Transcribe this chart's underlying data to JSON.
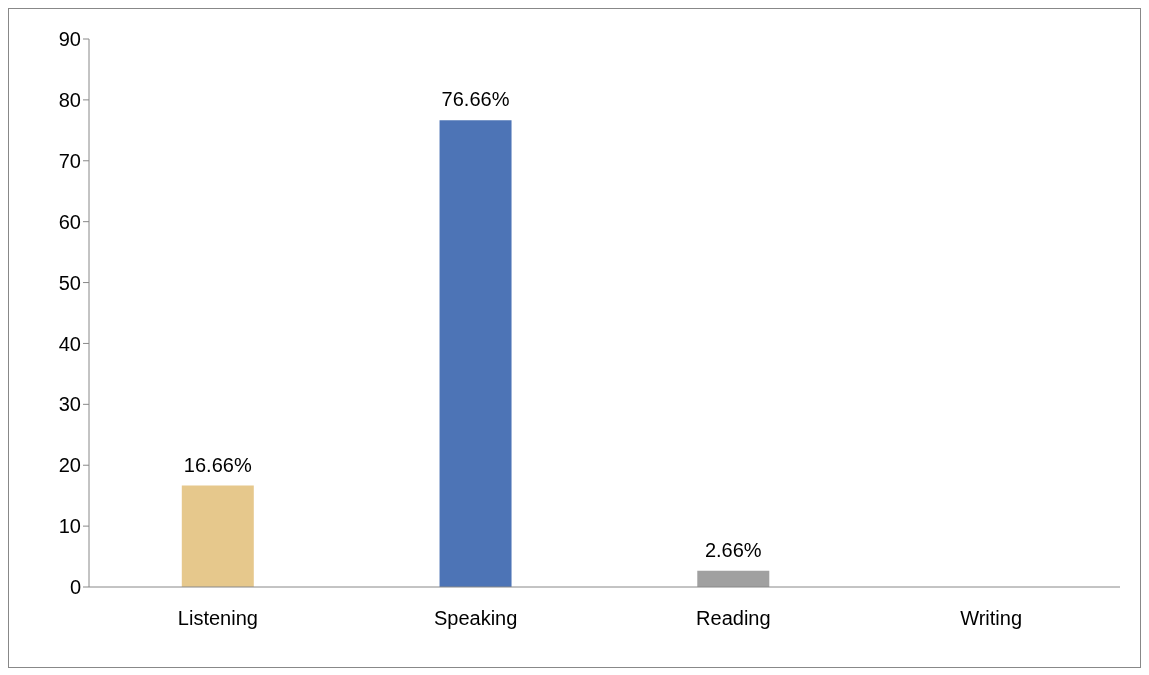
{
  "chart_data": {
    "type": "bar",
    "categories": [
      "Listening",
      "Speaking",
      "Reading",
      "Writing"
    ],
    "values": [
      16.66,
      76.66,
      2.66,
      0
    ],
    "colors": [
      "#e6c88c",
      "#4d74b6",
      "#a0a0a0",
      "#a0a0a0"
    ],
    "value_labels": [
      "16.66%",
      "76.66%",
      "2.66%",
      null
    ],
    "ylim": [
      0,
      90
    ],
    "yticks": [
      0,
      10,
      20,
      30,
      40,
      50,
      60,
      70,
      80,
      90
    ],
    "grid": false,
    "legend": false
  }
}
